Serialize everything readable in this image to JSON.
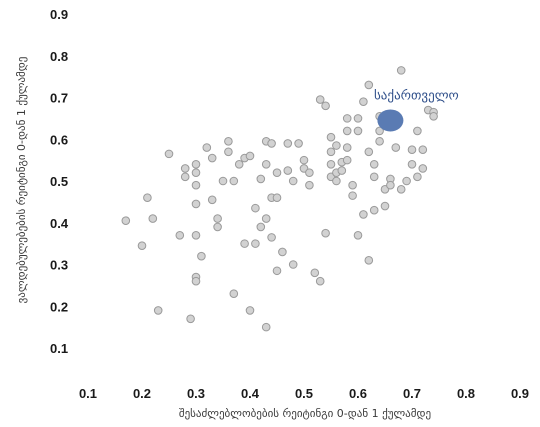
{
  "chart_data": {
    "type": "scatter",
    "title": "",
    "xlabel": "შესაძლებლობების რეიტინგი 0-დან 1 ქულამდე",
    "ylabel": "ვალდებულებების რეიტინგი 0-დან 1 ქულამდე",
    "xlim": [
      0.1,
      0.9
    ],
    "ylim": [
      0.1,
      0.9
    ],
    "x_ticks": [
      "0.1",
      "0.2",
      "0.3",
      "0.4",
      "0.5",
      "0.6",
      "0.7",
      "0.8",
      "0.9"
    ],
    "y_ticks": [
      "0.1",
      "0.2",
      "0.3",
      "0.4",
      "0.5",
      "0.6",
      "0.7",
      "0.8",
      "0.9"
    ],
    "grid": false,
    "point_color": "#d2d2d2",
    "point_edge": "#9a9a9a",
    "highlight_color": "#5a7bb3",
    "highlight": {
      "label": "საქართველო",
      "x": 0.66,
      "y": 0.645
    },
    "points": [
      [
        0.17,
        0.405
      ],
      [
        0.2,
        0.345
      ],
      [
        0.21,
        0.46
      ],
      [
        0.22,
        0.41
      ],
      [
        0.23,
        0.19
      ],
      [
        0.25,
        0.565
      ],
      [
        0.27,
        0.37
      ],
      [
        0.28,
        0.51
      ],
      [
        0.28,
        0.53
      ],
      [
        0.29,
        0.17
      ],
      [
        0.3,
        0.54
      ],
      [
        0.3,
        0.52
      ],
      [
        0.3,
        0.49
      ],
      [
        0.3,
        0.445
      ],
      [
        0.3,
        0.37
      ],
      [
        0.31,
        0.32
      ],
      [
        0.3,
        0.27
      ],
      [
        0.3,
        0.26
      ],
      [
        0.32,
        0.58
      ],
      [
        0.33,
        0.555
      ],
      [
        0.33,
        0.455
      ],
      [
        0.34,
        0.41
      ],
      [
        0.34,
        0.39
      ],
      [
        0.35,
        0.5
      ],
      [
        0.36,
        0.595
      ],
      [
        0.36,
        0.57
      ],
      [
        0.37,
        0.5
      ],
      [
        0.37,
        0.23
      ],
      [
        0.38,
        0.54
      ],
      [
        0.39,
        0.35
      ],
      [
        0.39,
        0.555
      ],
      [
        0.4,
        0.56
      ],
      [
        0.4,
        0.19
      ],
      [
        0.41,
        0.35
      ],
      [
        0.41,
        0.435
      ],
      [
        0.42,
        0.505
      ],
      [
        0.42,
        0.39
      ],
      [
        0.43,
        0.595
      ],
      [
        0.43,
        0.41
      ],
      [
        0.43,
        0.54
      ],
      [
        0.44,
        0.46
      ],
      [
        0.44,
        0.365
      ],
      [
        0.43,
        0.15
      ],
      [
        0.45,
        0.285
      ],
      [
        0.44,
        0.59
      ],
      [
        0.45,
        0.52
      ],
      [
        0.45,
        0.46
      ],
      [
        0.46,
        0.33
      ],
      [
        0.47,
        0.525
      ],
      [
        0.47,
        0.59
      ],
      [
        0.48,
        0.5
      ],
      [
        0.48,
        0.3
      ],
      [
        0.49,
        0.59
      ],
      [
        0.5,
        0.55
      ],
      [
        0.5,
        0.53
      ],
      [
        0.51,
        0.52
      ],
      [
        0.51,
        0.49
      ],
      [
        0.52,
        0.28
      ],
      [
        0.53,
        0.26
      ],
      [
        0.53,
        0.695
      ],
      [
        0.54,
        0.68
      ],
      [
        0.54,
        0.375
      ],
      [
        0.55,
        0.605
      ],
      [
        0.55,
        0.57
      ],
      [
        0.55,
        0.54
      ],
      [
        0.55,
        0.51
      ],
      [
        0.56,
        0.585
      ],
      [
        0.56,
        0.52
      ],
      [
        0.56,
        0.5
      ],
      [
        0.57,
        0.545
      ],
      [
        0.57,
        0.525
      ],
      [
        0.58,
        0.65
      ],
      [
        0.58,
        0.62
      ],
      [
        0.58,
        0.58
      ],
      [
        0.58,
        0.55
      ],
      [
        0.59,
        0.49
      ],
      [
        0.59,
        0.465
      ],
      [
        0.6,
        0.65
      ],
      [
        0.6,
        0.62
      ],
      [
        0.6,
        0.37
      ],
      [
        0.61,
        0.69
      ],
      [
        0.61,
        0.42
      ],
      [
        0.62,
        0.73
      ],
      [
        0.62,
        0.57
      ],
      [
        0.62,
        0.31
      ],
      [
        0.63,
        0.54
      ],
      [
        0.63,
        0.51
      ],
      [
        0.63,
        0.43
      ],
      [
        0.64,
        0.655
      ],
      [
        0.64,
        0.62
      ],
      [
        0.64,
        0.595
      ],
      [
        0.65,
        0.48
      ],
      [
        0.65,
        0.44
      ],
      [
        0.66,
        0.505
      ],
      [
        0.66,
        0.49
      ],
      [
        0.67,
        0.58
      ],
      [
        0.68,
        0.48
      ],
      [
        0.68,
        0.765
      ],
      [
        0.69,
        0.5
      ],
      [
        0.7,
        0.575
      ],
      [
        0.7,
        0.54
      ],
      [
        0.71,
        0.62
      ],
      [
        0.71,
        0.51
      ],
      [
        0.72,
        0.53
      ],
      [
        0.72,
        0.575
      ],
      [
        0.73,
        0.67
      ],
      [
        0.74,
        0.665
      ],
      [
        0.74,
        0.655
      ]
    ]
  }
}
